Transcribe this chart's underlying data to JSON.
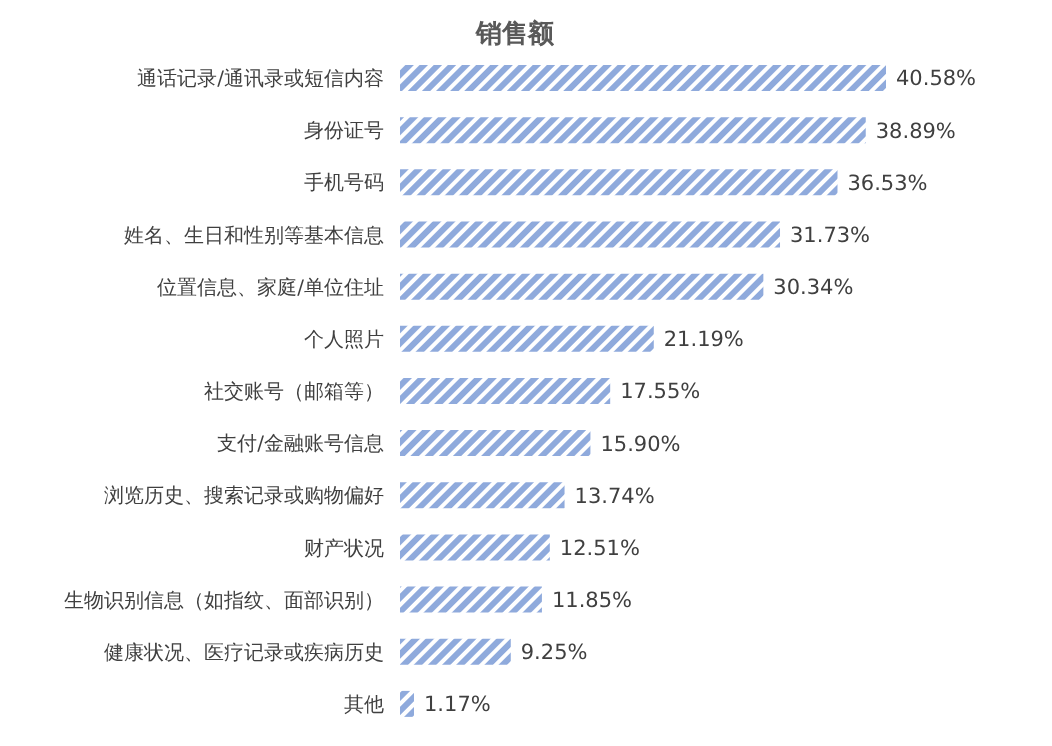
{
  "chart_data": {
    "type": "bar",
    "orientation": "horizontal",
    "title": "销售额",
    "categories": [
      "通话记录/通讯录或短信内容",
      "身份证号",
      "手机号码",
      "姓名、生日和性别等基本信息",
      "位置信息、家庭/单位住址",
      "个人照片",
      "社交账号（邮箱等）",
      "支付/金融账号信息",
      "浏览历史、搜索记录或购物偏好",
      "财产状况",
      "生物识别信息（如指纹、面部识别）",
      "健康状况、医疗记录或疾病历史",
      "其他"
    ],
    "values": [
      40.58,
      38.89,
      36.53,
      31.73,
      30.34,
      21.19,
      17.55,
      15.9,
      13.74,
      12.51,
      11.85,
      9.25,
      1.17
    ],
    "value_labels": [
      "40.58%",
      "38.89%",
      "36.53%",
      "31.73%",
      "30.34%",
      "21.19%",
      "17.55%",
      "15.90%",
      "13.74%",
      "12.51%",
      "11.85%",
      "9.25%",
      "1.17%"
    ],
    "color": "#8faadc"
  }
}
